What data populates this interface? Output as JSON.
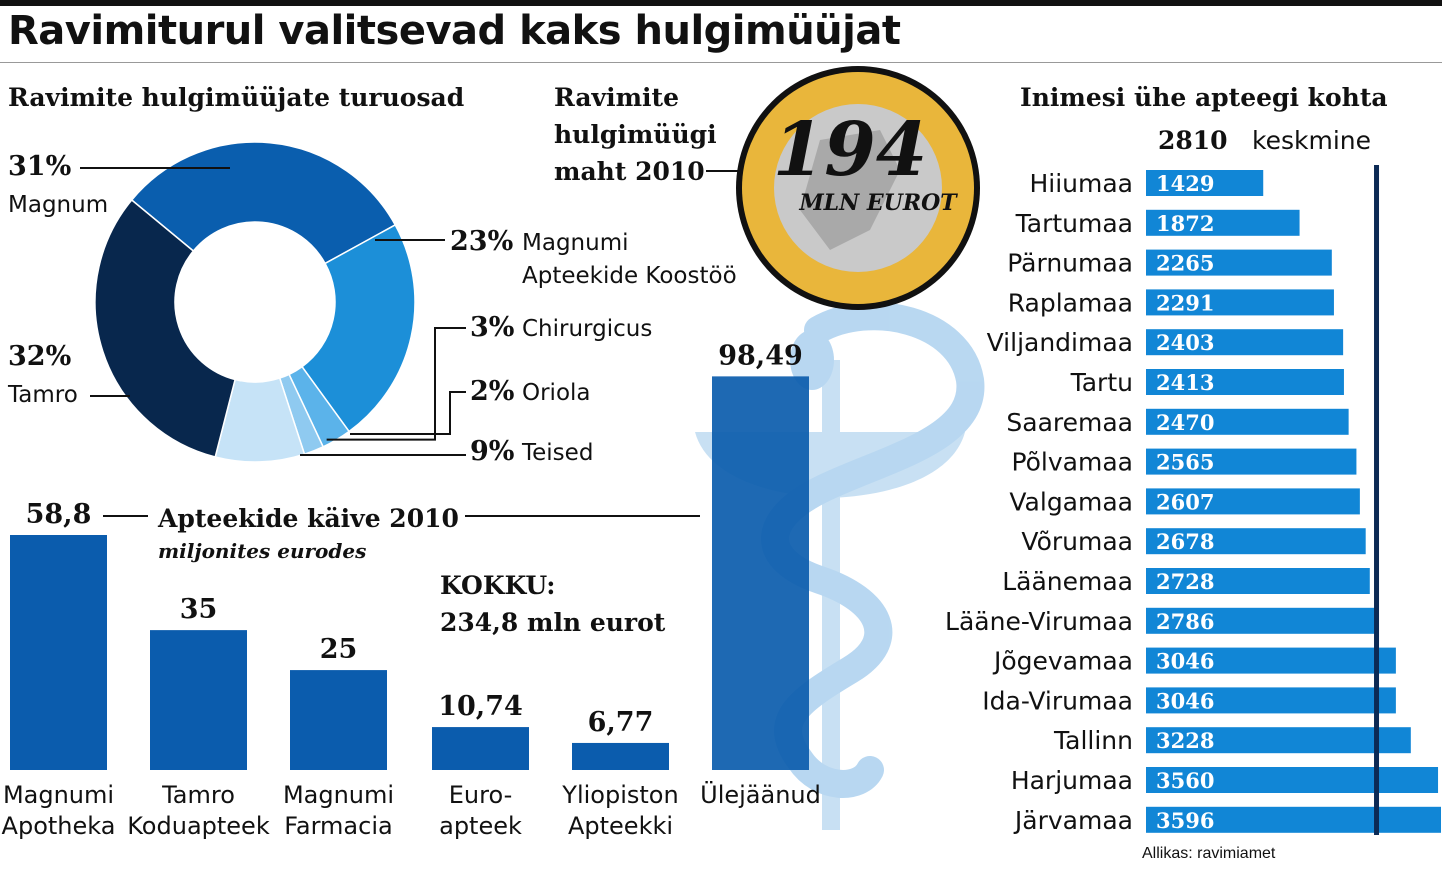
{
  "title": "Ravimiturul valitsevad kaks hulgimüüjat",
  "colors": {
    "dark_navy": "#08274d",
    "mid_blue": "#0a5eae",
    "bright_blue": "#1c8fd8",
    "light_blue": "#5bb3ea",
    "pale_blue": "#c6e3f7",
    "bar_blue": "#1186d6",
    "bar_dark": "#0b5cad",
    "avg_line": "#0c2a55"
  },
  "chart_data": [
    {
      "type": "pie",
      "title": "Ravimite hulgimüüjate turuosad",
      "donut": true,
      "slices": [
        {
          "label_pct": "31%",
          "value": 31,
          "label": "Magnum",
          "color": "#0a5eae"
        },
        {
          "label_pct": "23%",
          "value": 23,
          "label": "Magnumi Apteekide Koostöö",
          "label_line1": "Magnumi",
          "label_line2": "Apteekide Koostöö",
          "color": "#1c8fd8"
        },
        {
          "label_pct": "3%",
          "value": 3,
          "label": "Chirurgicus",
          "color": "#5bb3ea"
        },
        {
          "label_pct": "2%",
          "value": 2,
          "label": "Oriola",
          "color": "#8fcaf0"
        },
        {
          "label_pct": "9%",
          "value": 9,
          "label": "Teised",
          "color": "#c6e3f7"
        },
        {
          "label_pct": "32%",
          "value": 32,
          "label": "Tamro",
          "color": "#08274d"
        }
      ]
    },
    {
      "type": "bar",
      "title": "Apteekide käive 2010",
      "subtitle": "miljonites eurodes",
      "total_label": "KOKKU:",
      "total_value": "234,8 mln eurot",
      "ylim": [
        0,
        100
      ],
      "bars": [
        {
          "value": 58.8,
          "value_label": "58,8",
          "cat1": "Magnumi",
          "cat2": "Apotheka"
        },
        {
          "value": 35,
          "value_label": "35",
          "cat1": "Tamro",
          "cat2": "Koduapteek"
        },
        {
          "value": 25,
          "value_label": "25",
          "cat1": "Magnumi",
          "cat2": "Farmacia"
        },
        {
          "value": 10.74,
          "value_label": "10,74",
          "cat1": "Euro-",
          "cat2": "apteek"
        },
        {
          "value": 6.77,
          "value_label": "6,77",
          "cat1": "Yliopiston",
          "cat2": "Apteekki"
        },
        {
          "value": 98.49,
          "value_label": "98,49",
          "cat1": "Ülejäänud",
          "cat2": ""
        }
      ]
    },
    {
      "type": "bar",
      "orientation": "horizontal",
      "title": "Inimesi ühe apteegi kohta",
      "average_value": 2810,
      "average_value_label": "2810",
      "average_label": "keskmine",
      "xlim": [
        0,
        3700
      ],
      "categories": [
        "Hiiumaa",
        "Tartumaa",
        "Pärnumaa",
        "Raplamaa",
        "Viljandimaa",
        "Tartu",
        "Saaremaa",
        "Põlvamaa",
        "Valgamaa",
        "Võrumaa",
        "Läänemaa",
        "Lääne-Virumaa",
        "Jõgevamaa",
        "Ida-Virumaa",
        "Tallinn",
        "Harjumaa",
        "Järvamaa"
      ],
      "values": [
        1429,
        1872,
        2265,
        2291,
        2403,
        2413,
        2470,
        2565,
        2607,
        2678,
        2728,
        2786,
        3046,
        3046,
        3228,
        3560,
        3596
      ],
      "value_labels": [
        "1429",
        "1872",
        "2265",
        "2291",
        "2403",
        "2413",
        "2470",
        "2565",
        "2607",
        "2678",
        "2728",
        "2786",
        "3046",
        "3046",
        "3228",
        "3560",
        "3596"
      ]
    }
  ],
  "volume": {
    "label1": "Ravimite",
    "label2": "hulgimüügi",
    "label3": "maht 2010",
    "coin_value": "194",
    "coin_unit": "MLN EUROT"
  },
  "source": "Allikas: ravimiamet"
}
